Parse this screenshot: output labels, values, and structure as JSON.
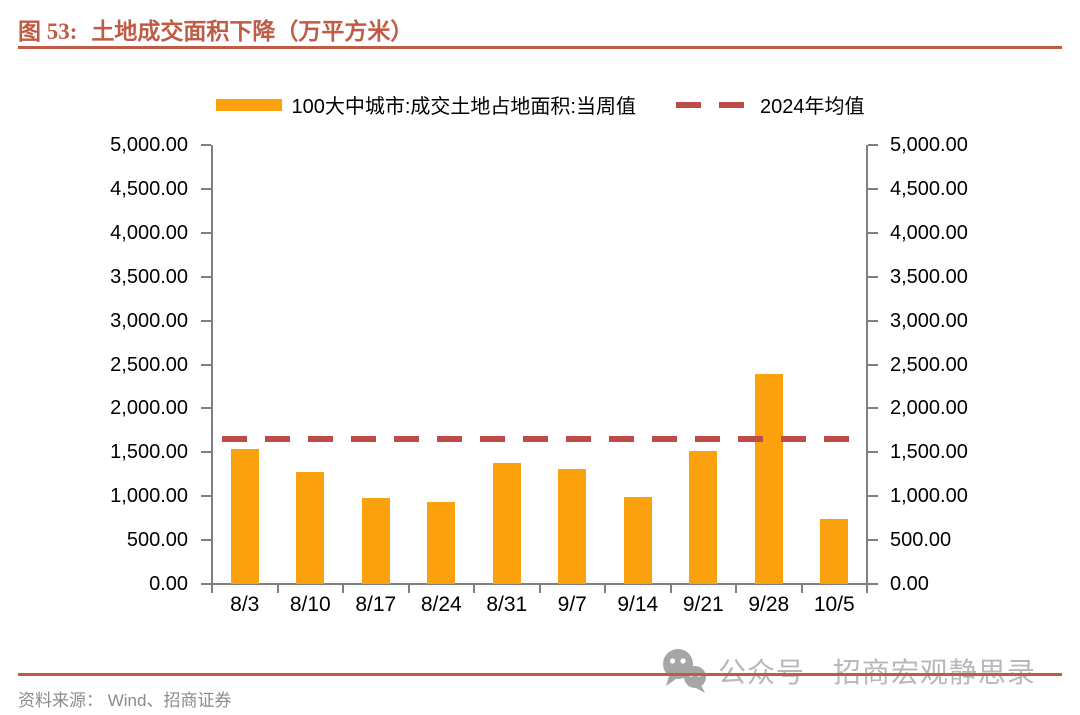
{
  "header": {
    "figure_label": "图 53:",
    "title": "土地成交面积下降（万平方米）"
  },
  "legend": {
    "bar_label": "100大中城市:成交土地占地面积:当周值",
    "line_label": "2024年均值"
  },
  "chart_data": {
    "type": "bar",
    "title": "土地成交面积下降（万平方米）",
    "categories": [
      "8/3",
      "8/10",
      "8/17",
      "8/24",
      "8/31",
      "9/7",
      "9/14",
      "9/21",
      "9/28",
      "10/5"
    ],
    "series": [
      {
        "name": "100大中城市:成交土地占地面积:当周值",
        "values": [
          1540,
          1280,
          980,
          930,
          1380,
          1310,
          990,
          1510,
          2390,
          740
        ]
      }
    ],
    "average_line": {
      "name": "2024年均值",
      "value": 1650
    },
    "xlabel": "",
    "ylabel": "",
    "ylim": [
      0,
      5000
    ],
    "ytick_step": 500,
    "ytick_labels": [
      "0.00",
      "500.00",
      "1,000.00",
      "1,500.00",
      "2,000.00",
      "2,500.00",
      "3,000.00",
      "3,500.00",
      "4,000.00",
      "4,500.00",
      "5,000.00"
    ],
    "dual_axis": true,
    "grid": false,
    "legend_position": "top",
    "bar_color": "#FBA10E",
    "line_color": "#BE4B48",
    "axis_color": "#808080"
  },
  "footer": {
    "source": "资料来源： Wind、招商证券",
    "watermark": "公众号 · 招商宏观静思录"
  }
}
